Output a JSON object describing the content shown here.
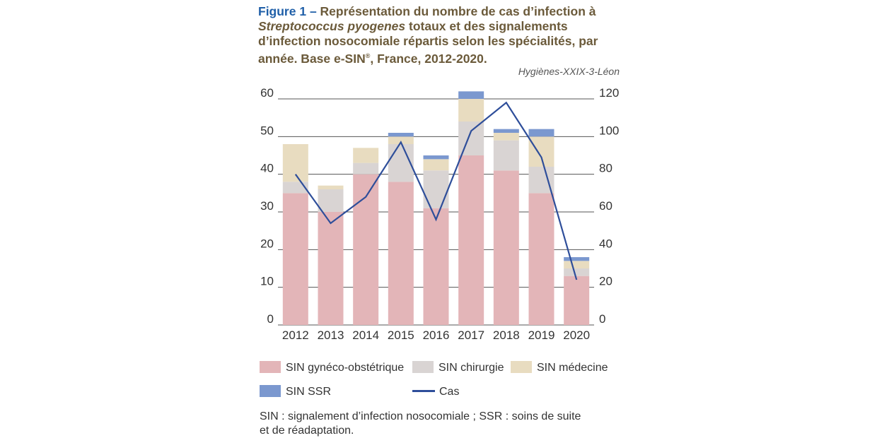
{
  "title": {
    "label": "Figure 1",
    "dash": " – ",
    "part1": "Représentation du nombre de cas d’infection à ",
    "italic": "Streptococcus pyogenes",
    "part2": " totaux et des signalements d’infection nosocomiale répartis selon les spécialités, par année. Base e-SIN",
    "reg": "®",
    "part3": ", France, 2012-2020."
  },
  "source": "Hygiènes-XXIX-3-Léon",
  "chart_data": {
    "type": "bar",
    "stacked": true,
    "categories": [
      "2012",
      "2013",
      "2014",
      "2015",
      "2016",
      "2017",
      "2018",
      "2019",
      "2020"
    ],
    "series": [
      {
        "name": "SIN gynéco-obstétrique",
        "color": "#e3b5b8",
        "values": [
          35,
          30,
          40,
          38,
          31,
          45,
          41,
          35,
          13
        ]
      },
      {
        "name": "SIN chirurgie",
        "color": "#d9d4d3",
        "values": [
          3,
          6,
          3,
          10,
          10,
          9,
          8,
          7,
          2
        ]
      },
      {
        "name": "SIN médecine",
        "color": "#e8dcc0",
        "values": [
          10,
          1,
          4,
          2,
          3,
          6,
          2,
          8,
          2
        ]
      },
      {
        "name": "SIN SSR",
        "color": "#7b98cf",
        "values": [
          0,
          0,
          0,
          1,
          1,
          2,
          1,
          2,
          1
        ]
      }
    ],
    "line_series": {
      "name": "Cas",
      "color": "#2e4e9a",
      "axis": "right",
      "values": [
        80,
        54,
        68,
        97,
        56,
        103,
        118,
        89,
        24
      ]
    },
    "yleft": {
      "range": [
        0,
        60
      ],
      "ticks": [
        "0",
        "10",
        "20",
        "30",
        "40",
        "50",
        "60"
      ]
    },
    "yright": {
      "range": [
        0,
        120
      ],
      "ticks": [
        "0",
        "20",
        "40",
        "60",
        "80",
        "100",
        "120"
      ]
    },
    "grid": true,
    "legend_position": "bottom"
  },
  "footnote": {
    "line1": "SIN : signalement d’infection nosocomiale ; SSR : soins de suite",
    "line2": "et de réadaptation."
  }
}
